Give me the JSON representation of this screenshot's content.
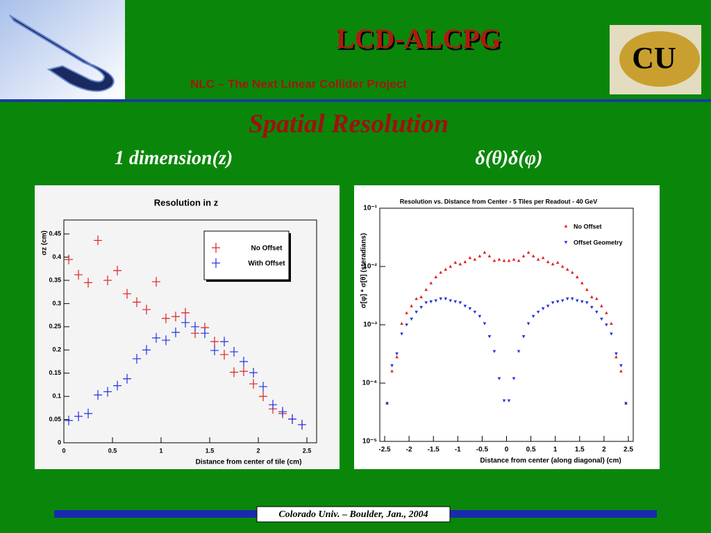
{
  "header": {
    "title": "LCD-ALCPG",
    "subtitle": "NLC – The Next Linear Collider Project",
    "logo_text": "CU"
  },
  "slide_title": "Spatial Resolution",
  "captions": [
    "1 dimension(z)",
    "δ(θ)δ(φ)"
  ],
  "footer": "Colorado Univ. – Boulder, Jan., 2004",
  "chart_data": [
    {
      "type": "scatter",
      "title": "Resolution in z",
      "x_label": "Distance from center of tile (cm)",
      "y_label": "σz (cm)",
      "x": [
        0.05,
        0.15,
        0.25,
        0.35,
        0.45,
        0.55,
        0.65,
        0.75,
        0.85,
        0.95,
        1.05,
        1.15,
        1.25,
        1.35,
        1.45,
        1.55,
        1.65,
        1.75,
        1.85,
        1.95,
        2.05,
        2.15,
        2.25,
        2.35,
        2.45
      ],
      "series": [
        {
          "name": "No Offset",
          "color": "#e02020",
          "marker": "cross",
          "values": [
            0.395,
            0.362,
            0.345,
            0.436,
            0.35,
            0.371,
            0.321,
            0.303,
            0.287,
            0.347,
            0.268,
            0.272,
            0.28,
            0.236,
            0.248,
            0.218,
            0.19,
            0.152,
            0.154,
            0.127,
            0.1,
            0.073,
            0.063,
            0.051,
            0.039
          ]
        },
        {
          "name": "With Offset",
          "color": "#2030e0",
          "marker": "cross",
          "values": [
            0.048,
            0.057,
            0.063,
            0.103,
            0.11,
            0.123,
            0.138,
            0.181,
            0.2,
            0.226,
            0.221,
            0.238,
            0.259,
            0.25,
            0.236,
            0.199,
            0.218,
            0.196,
            0.175,
            0.151,
            0.121,
            0.082,
            0.067,
            0.051,
            0.039
          ]
        }
      ],
      "xlim": [
        0,
        2.6
      ],
      "xticks": [
        0,
        0.5,
        1,
        1.5,
        2,
        2.5
      ],
      "ylim": [
        0,
        0.48
      ],
      "yticks": [
        0,
        0.05,
        0.1,
        0.15,
        0.2,
        0.25,
        0.3,
        0.35,
        0.4,
        0.45
      ],
      "log_y": false,
      "legend": "upper right"
    },
    {
      "type": "scatter",
      "title": "Resolution vs. Distance from Center - 5 Tiles per Readout - 40 GeV",
      "x_label": "Distance from center (along diagonal) (cm)",
      "y_label": "σ[φ] * σ[θ] (steradians)",
      "x": [
        -2.45,
        -2.35,
        -2.25,
        -2.15,
        -2.05,
        -1.95,
        -1.85,
        -1.75,
        -1.65,
        -1.55,
        -1.45,
        -1.35,
        -1.25,
        -1.15,
        -1.05,
        -0.95,
        -0.85,
        -0.75,
        -0.65,
        -0.55,
        -0.45,
        -0.35,
        -0.25,
        -0.15,
        -0.05,
        0.05,
        0.15,
        0.25,
        0.35,
        0.45,
        0.55,
        0.65,
        0.75,
        0.85,
        0.95,
        1.05,
        1.15,
        1.25,
        1.35,
        1.45,
        1.55,
        1.65,
        1.75,
        1.85,
        1.95,
        2.05,
        2.15,
        2.25,
        2.35,
        2.45
      ],
      "series": [
        {
          "name": "No Offset",
          "color": "#e02020",
          "marker": "triangle-up",
          "values": [
            4.5e-05,
            0.00016,
            0.00028,
            0.00105,
            0.0016,
            0.0021,
            0.0028,
            0.003,
            0.004,
            0.0052,
            0.0066,
            0.0079,
            0.0089,
            0.01,
            0.0117,
            0.011,
            0.012,
            0.0141,
            0.0132,
            0.0151,
            0.0174,
            0.0151,
            0.0126,
            0.0132,
            0.0126,
            0.0126,
            0.0132,
            0.0126,
            0.0151,
            0.0174,
            0.0151,
            0.0132,
            0.0141,
            0.012,
            0.011,
            0.0117,
            0.01,
            0.0089,
            0.0079,
            0.0066,
            0.0052,
            0.004,
            0.003,
            0.0028,
            0.0021,
            0.0016,
            0.00105,
            0.00028,
            0.00016,
            4.5e-05
          ]
        },
        {
          "name": "Offset Geometry",
          "color": "#2030e0",
          "marker": "triangle-down",
          "values": [
            4.5e-05,
            0.0002,
            0.00032,
            0.0007,
            0.001,
            0.00126,
            0.00166,
            0.002,
            0.0024,
            0.0025,
            0.0026,
            0.0028,
            0.0028,
            0.0026,
            0.0025,
            0.0024,
            0.0021,
            0.0019,
            0.00166,
            0.0014,
            0.00105,
            0.00063,
            0.00035,
            0.00012,
            5e-05,
            5e-05,
            0.00012,
            0.00035,
            0.00063,
            0.00105,
            0.0014,
            0.00166,
            0.0019,
            0.0021,
            0.0024,
            0.0025,
            0.0026,
            0.0028,
            0.0028,
            0.0026,
            0.0025,
            0.0024,
            0.002,
            0.00166,
            0.00126,
            0.001,
            0.0007,
            0.00032,
            0.0002,
            4.5e-05
          ]
        }
      ],
      "xlim": [
        -2.6,
        2.6
      ],
      "xticks": [
        -2.5,
        -2,
        -1.5,
        -1,
        -0.5,
        0,
        0.5,
        1,
        1.5,
        2,
        2.5
      ],
      "ylim": [
        1e-05,
        0.1
      ],
      "yticks": [
        {
          "value": 1e-05,
          "label": "10⁻⁵"
        },
        {
          "value": 0.0001,
          "label": "10⁻⁴"
        },
        {
          "value": 0.001,
          "label": "10⁻³"
        },
        {
          "value": 0.01,
          "label": "10⁻²"
        },
        {
          "value": 0.1,
          "label": "10⁻¹"
        }
      ],
      "log_y": true,
      "legend": "upper right"
    }
  ]
}
